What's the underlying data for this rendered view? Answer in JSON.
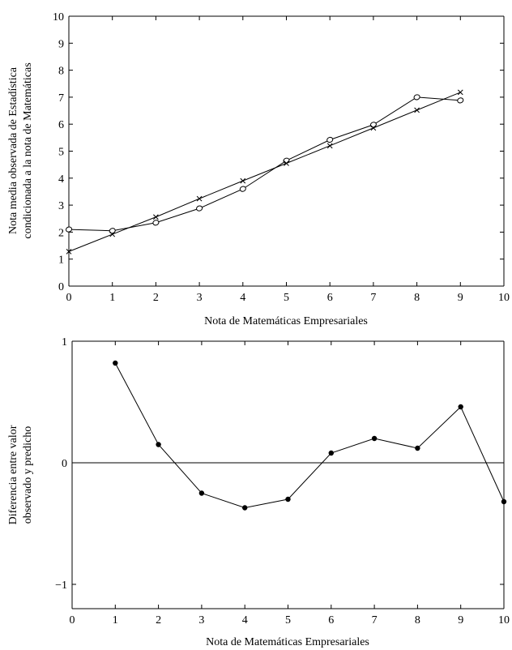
{
  "chart_data": [
    {
      "type": "line",
      "title": "",
      "xlabel": "Nota de Matemáticas Empresariales",
      "ylabel_lines": [
        "Nota media observada de Estadística",
        "condicionada a la nota de Matemáticas"
      ],
      "xlim": [
        0,
        10
      ],
      "ylim": [
        0,
        10
      ],
      "xticks": [
        "0",
        "1",
        "2",
        "3",
        "4",
        "5",
        "6",
        "7",
        "8",
        "9",
        "10"
      ],
      "yticks": [
        "0",
        "1",
        "2",
        "3",
        "4",
        "5",
        "6",
        "7",
        "8",
        "9",
        "10"
      ],
      "grid": false,
      "legend": "none",
      "series": [
        {
          "marker": "o",
          "x": [
            0,
            1,
            2,
            3,
            4,
            5,
            6,
            7,
            8,
            9
          ],
          "y": [
            2.1,
            2.05,
            2.35,
            2.88,
            3.6,
            4.65,
            5.42,
            5.98,
            7.0,
            6.88
          ]
        },
        {
          "marker": "x",
          "x": [
            0,
            1,
            2,
            3,
            4,
            5,
            6,
            7,
            8,
            9
          ],
          "y": [
            1.28,
            1.92,
            2.56,
            3.24,
            3.9,
            4.55,
            5.2,
            5.86,
            6.52,
            7.18
          ]
        }
      ]
    },
    {
      "type": "line",
      "title": "",
      "xlabel": "Nota de Matemáticas Empresariales",
      "ylabel_lines": [
        "Diferencia entre valor",
        "observado y predicho"
      ],
      "xlim": [
        0,
        10
      ],
      "ylim": [
        -1.2,
        1
      ],
      "xticks": [
        "0",
        "1",
        "2",
        "3",
        "4",
        "5",
        "6",
        "7",
        "8",
        "9",
        "10"
      ],
      "yticks": [
        {
          "value": -1,
          "label": "−1"
        },
        {
          "value": 0,
          "label": "0"
        },
        {
          "value": 1,
          "label": "1"
        }
      ],
      "reference_line_y": 0,
      "grid": false,
      "legend": "none",
      "series": [
        {
          "marker": "filled-circle",
          "x": [
            1,
            2,
            3,
            4,
            5,
            6,
            7,
            8,
            9,
            10
          ],
          "y": [
            0.82,
            0.15,
            -0.25,
            -0.37,
            -0.3,
            0.08,
            0.2,
            0.12,
            0.46,
            -0.32
          ]
        }
      ]
    }
  ]
}
